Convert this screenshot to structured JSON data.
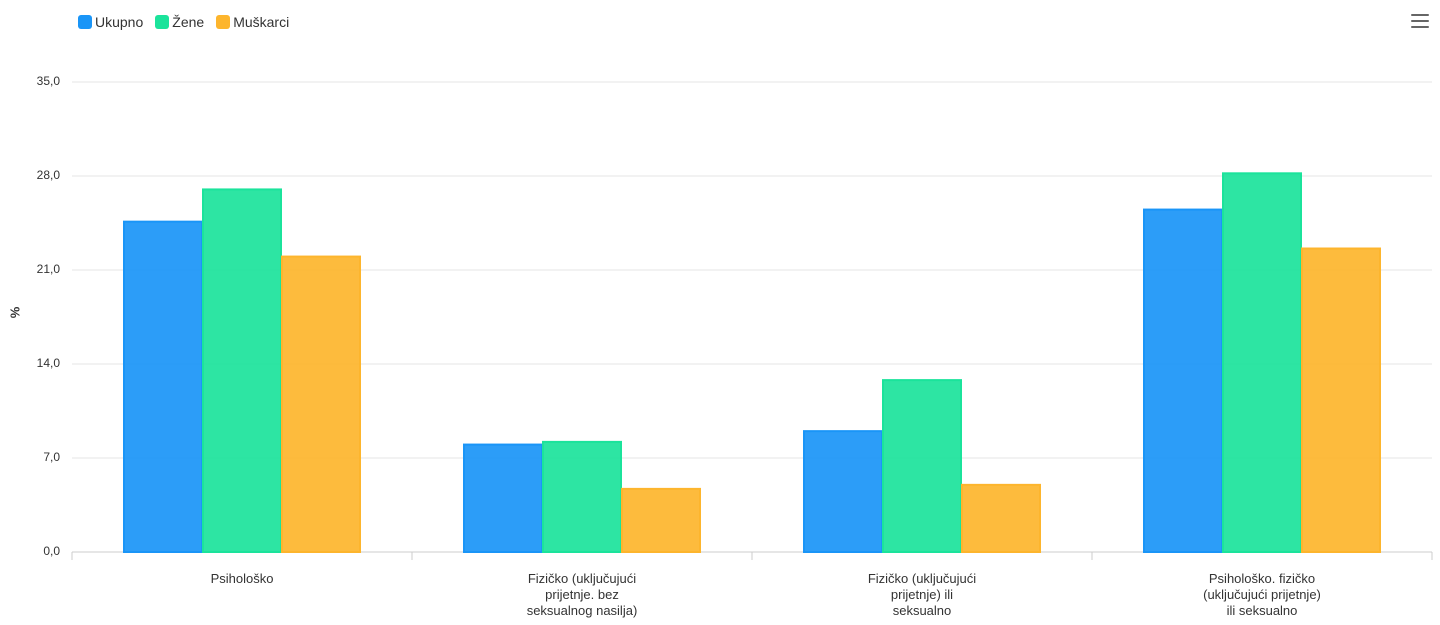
{
  "chart_data": {
    "type": "bar",
    "categories": [
      "Psihološko",
      "Fizičko (uključujući prijetnje. bez seksualnog nasilja)",
      "Fizičko (uključujući prijetnje) ili seksualno",
      "Psihološko. fizičko (uključujući prijetnje) ili seksualno"
    ],
    "category_lines": [
      [
        "Psihološko"
      ],
      [
        "Fizičko (uključujući",
        "prijetnje. bez",
        "seksualnog nasilja)"
      ],
      [
        "Fizičko (uključujući",
        "prijetnje) ili",
        "seksualno"
      ],
      [
        "Psihološko. fizičko",
        "(uključujući prijetnje)",
        "ili seksualno"
      ]
    ],
    "series": [
      {
        "name": "Ukupno",
        "color": "#1a95f7",
        "values": [
          24.6,
          8.0,
          9.0,
          25.5
        ]
      },
      {
        "name": "Žene",
        "color": "#1be39b",
        "values": [
          27.0,
          8.2,
          12.8,
          28.2
        ]
      },
      {
        "name": "Muškarci",
        "color": "#fdb52d",
        "values": [
          22.0,
          4.7,
          5.0,
          22.6
        ]
      }
    ],
    "ylabel": "%",
    "ylim": [
      0,
      35
    ],
    "yticks": [
      "0,0",
      "7,0",
      "14,0",
      "21,0",
      "28,0",
      "35,0"
    ],
    "ytick_values": [
      0,
      7,
      14,
      21,
      28,
      35
    ],
    "grid": true,
    "legend_position": "top-left"
  }
}
